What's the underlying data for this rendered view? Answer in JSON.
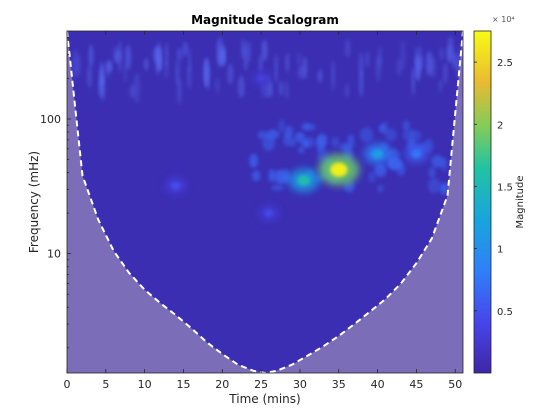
{
  "chart_data": {
    "type": "heatmap",
    "title": "Magnitude Scalogram",
    "xlabel": "Time (mins)",
    "ylabel": "Frequency (mHz)",
    "xlim": [
      0,
      51
    ],
    "ylim": [
      1.3,
      450
    ],
    "yscale": "log",
    "x_ticks": [
      0,
      5,
      10,
      15,
      20,
      25,
      30,
      35,
      40,
      45,
      50
    ],
    "y_ticks": [
      10,
      100
    ],
    "colorbar": {
      "label": "Magnitude",
      "exponent_label": "× 10⁴",
      "ticks": [
        0.5,
        1,
        1.5,
        2,
        2.5
      ],
      "range": [
        0,
        2.75
      ],
      "colormap": "parula"
    },
    "cone_of_influence": {
      "style": "white dashed",
      "x": [
        0,
        2,
        4,
        6,
        8,
        10,
        12,
        14,
        16,
        18,
        20,
        22,
        24,
        25.5,
        27,
        29,
        31,
        33,
        35,
        37,
        39,
        41,
        43,
        45,
        47,
        49,
        51
      ],
      "freq": [
        450,
        38,
        18,
        10.5,
        7.2,
        5.4,
        4.3,
        3.5,
        2.8,
        2.2,
        1.8,
        1.5,
        1.35,
        1.3,
        1.35,
        1.5,
        1.75,
        2.05,
        2.45,
        3.0,
        3.7,
        4.6,
        6.0,
        8.5,
        13,
        27,
        450
      ]
    },
    "features": [
      {
        "x": 35,
        "freq": 42,
        "magnitude": 2.7
      },
      {
        "x": 30.5,
        "freq": 35,
        "magnitude": 1.6
      },
      {
        "x": 40,
        "freq": 55,
        "magnitude": 1.2
      },
      {
        "x": 45,
        "freq": 55,
        "magnitude": 0.8
      },
      {
        "x": 14,
        "freq": 32,
        "magnitude": 0.5
      },
      {
        "x": 26,
        "freq": 20,
        "magnitude": 0.45
      },
      {
        "x": 25,
        "freq": 200,
        "magnitude": 0.35
      }
    ]
  }
}
